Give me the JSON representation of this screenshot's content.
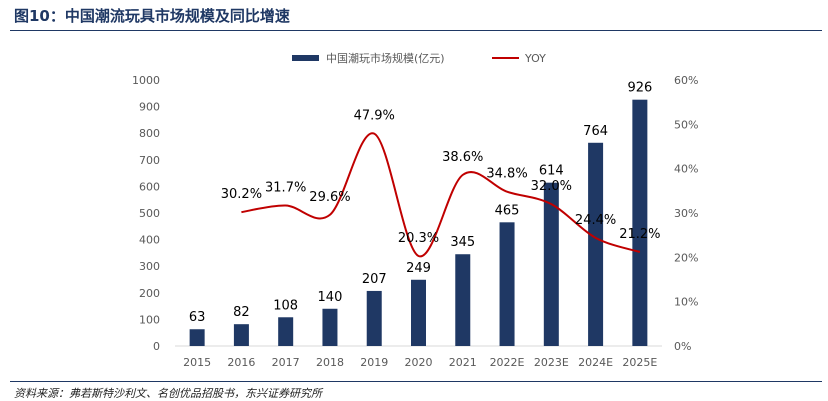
{
  "header": {
    "title": "图10：中国潮流玩具市场规模及同比增速"
  },
  "footer": {
    "source": "资料来源：弗若斯特沙利文、名创优品招股书，东兴证券研究所"
  },
  "colors": {
    "bar": "#1f3864",
    "line": "#c00000",
    "title": "#1f3864",
    "axis_text": "#595959"
  },
  "chart_data": {
    "type": "bar",
    "categories": [
      "2015",
      "2016",
      "2017",
      "2018",
      "2019",
      "2020",
      "2021",
      "2022E",
      "2023E",
      "2024E",
      "2025E"
    ],
    "series": [
      {
        "name": "中国潮玩市场规模(亿元)",
        "type": "bar",
        "axis": "left",
        "values": [
          63,
          82,
          108,
          140,
          207,
          249,
          345,
          465,
          614,
          764,
          926
        ],
        "labels": [
          "63",
          "82",
          "108",
          "140",
          "207",
          "249",
          "345",
          "465",
          "614",
          "764",
          "926"
        ]
      },
      {
        "name": "YOY",
        "type": "line",
        "axis": "right",
        "values": [
          null,
          30.2,
          31.7,
          29.6,
          47.9,
          20.3,
          38.6,
          34.8,
          32.0,
          24.4,
          21.2
        ],
        "labels": [
          "",
          "30.2%",
          "31.7%",
          "29.6%",
          "47.9%",
          "20.3%",
          "38.6%",
          "34.8%",
          "32.0%",
          "24.4%",
          "21.2%"
        ]
      }
    ],
    "y_left": {
      "min": 0,
      "max": 1000,
      "ticks": [
        "0",
        "100",
        "200",
        "300",
        "400",
        "500",
        "600",
        "700",
        "800",
        "900",
        "1000"
      ]
    },
    "y_right": {
      "min": 0,
      "max": 60,
      "ticks": [
        "0%",
        "10%",
        "20%",
        "30%",
        "40%",
        "50%",
        "60%"
      ]
    },
    "legend": {
      "position": "top"
    },
    "grid": false
  }
}
